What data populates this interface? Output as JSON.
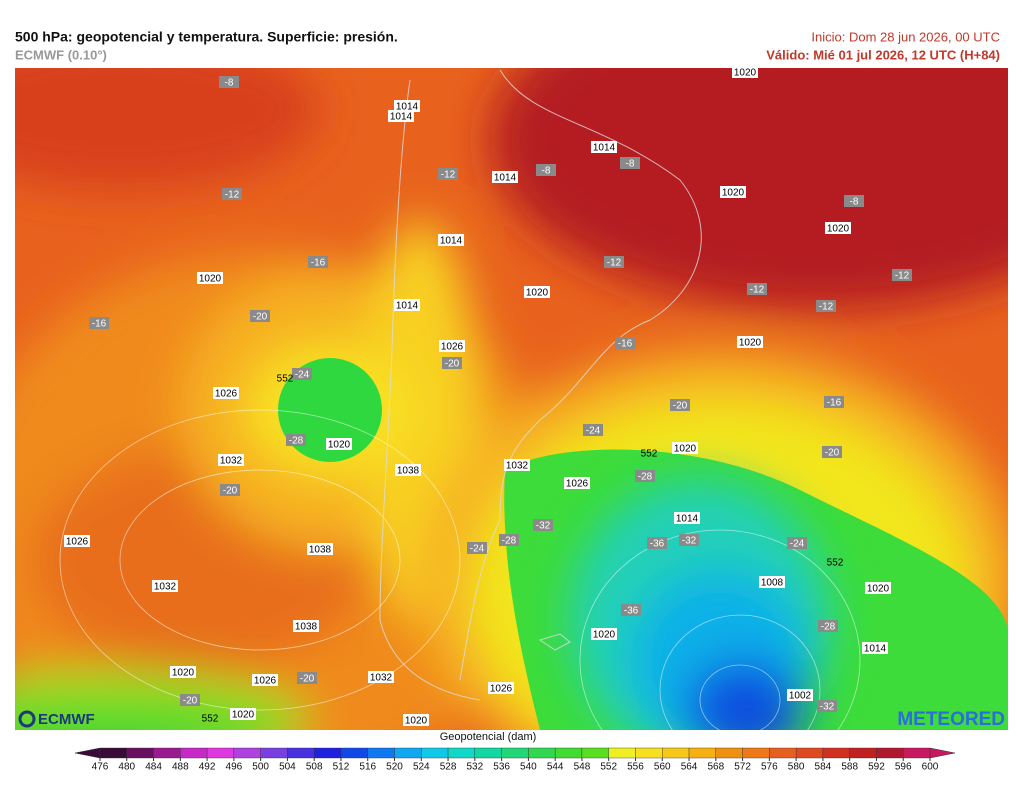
{
  "header": {
    "title": "500 hPa: geopotencial y temperatura. Superficie: presión.",
    "model": "ECMWF (0.10°)",
    "init": "Inicio: Dom 28 jun 2026, 00 UTC",
    "valid": "Válido: Mié 01 jul 2026, 12 UTC (H+84)"
  },
  "map": {
    "pressure_labels": [
      "1014",
      "1014",
      "1014",
      "1020",
      "1014",
      "1020",
      "1020",
      "1014",
      "1020",
      "1020",
      "1014",
      "1026",
      "1020",
      "1026",
      "1020",
      "1020",
      "1032",
      "1038",
      "1032",
      "1026",
      "1014",
      "1026",
      "1038",
      "1008",
      "1032",
      "1020",
      "1038",
      "1020",
      "1014",
      "1020",
      "1026",
      "1032",
      "1026",
      "1002",
      "1020",
      "1020"
    ],
    "temperature_labels": [
      "-8",
      "-12",
      "-8",
      "-8",
      "-12",
      "-8",
      "-16",
      "-12",
      "-12",
      "-12",
      "-12",
      "-20",
      "-16",
      "-16",
      "-20",
      "-24",
      "-20",
      "-16",
      "-28",
      "-24",
      "-20",
      "-28",
      "-20",
      "-32",
      "-36",
      "-32",
      "-28",
      "-24",
      "-24",
      "-36",
      "-28",
      "-20",
      "-32",
      "-20"
    ],
    "height_labels": [
      "552",
      "552",
      "552",
      "552"
    ]
  },
  "colorbar": {
    "title": "Geopotencial (dam)",
    "ticks": [
      476,
      480,
      484,
      488,
      492,
      496,
      500,
      504,
      508,
      512,
      516,
      520,
      524,
      528,
      532,
      536,
      540,
      544,
      548,
      552,
      556,
      560,
      564,
      568,
      572,
      576,
      580,
      584,
      588,
      592,
      596,
      600
    ],
    "colors": [
      "#3a0a38",
      "#6a1060",
      "#9a1a90",
      "#c828c8",
      "#e038e0",
      "#b040e0",
      "#7840e0",
      "#4830e0",
      "#2020e0",
      "#1048e8",
      "#1078f0",
      "#10a8f0",
      "#10c8e8",
      "#10d8c8",
      "#10d8a0",
      "#20d878",
      "#30d850",
      "#40dc30",
      "#58e020",
      "#f0f020",
      "#f8e020",
      "#f8c818",
      "#f8b010",
      "#f09010",
      "#f07818",
      "#e86020",
      "#e04820",
      "#d03020",
      "#c02020",
      "#b01830",
      "#c81860"
    ]
  },
  "logos": {
    "left": "ECMWF",
    "right": "METEORED"
  }
}
